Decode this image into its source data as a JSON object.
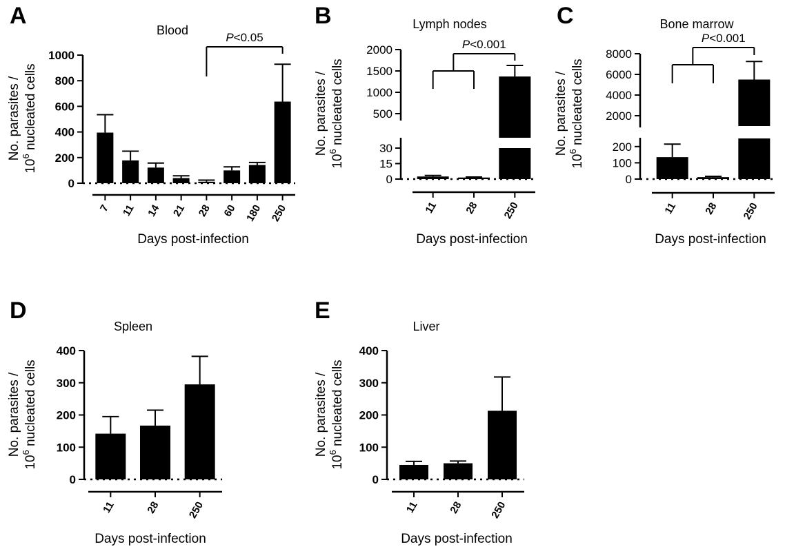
{
  "chart_data": [
    {
      "panel_letter": "A",
      "type": "bar",
      "title": "Blood",
      "ylabel_line1": "No. parasites /",
      "ylabel_line2_base": "10",
      "ylabel_line2_exp": "6",
      "ylabel_line2_rest": " nucleated cells",
      "xlabel": "Days post-infection",
      "categories": [
        "7",
        "11",
        "14",
        "21",
        "28",
        "60",
        "180",
        "250"
      ],
      "values": [
        395,
        178,
        122,
        40,
        12,
        100,
        142,
        637
      ],
      "errors": [
        140,
        72,
        35,
        18,
        12,
        28,
        20,
        292
      ],
      "ylim": [
        0,
        1000
      ],
      "yticks": [
        "0",
        "200",
        "400",
        "600",
        "800",
        "1000"
      ],
      "significance": [
        {
          "label_italic": "P",
          "label_rest": "<0.05"
        }
      ]
    },
    {
      "panel_letter": "B",
      "type": "bar",
      "title": "Lymph nodes",
      "ylabel_line1": "No. parasites /",
      "ylabel_line2_base": "10",
      "ylabel_line2_exp": "6",
      "ylabel_line2_rest": " nucleated cells",
      "xlabel": "Days post-infection",
      "categories": [
        "11",
        "28",
        "250"
      ],
      "values": [
        2.5,
        1.5,
        1370
      ],
      "errors": [
        1,
        0.5,
        260
      ],
      "y_axis_break": {
        "lower_range": [
          0,
          30
        ],
        "upper_range": [
          0,
          2000
        ]
      },
      "yticks_lower": [
        "0",
        "15",
        "30"
      ],
      "yticks_upper": [
        "500",
        "1000",
        "1500",
        "2000"
      ],
      "significance": [
        {
          "label_italic": "P",
          "label_rest": "<0.001"
        }
      ]
    },
    {
      "panel_letter": "C",
      "type": "bar",
      "title": "Bone marrow",
      "ylabel_line1": "No. parasites /",
      "ylabel_line2_base": "10",
      "ylabel_line2_exp": "6",
      "ylabel_line2_rest": " nucleated cells",
      "xlabel": "Days post-infection",
      "categories": [
        "11",
        "28",
        "250"
      ],
      "values": [
        135,
        12,
        5500
      ],
      "errors": [
        80,
        5,
        1750
      ],
      "y_axis_break": {
        "lower_range": [
          0,
          250
        ],
        "upper_range": [
          0,
          8000
        ]
      },
      "yticks_lower": [
        "0",
        "100",
        "200"
      ],
      "yticks_upper": [
        "2000",
        "4000",
        "6000",
        "8000"
      ],
      "significance": [
        {
          "label_italic": "P",
          "label_rest": "<0.001"
        }
      ]
    },
    {
      "panel_letter": "D",
      "type": "bar",
      "title": "Spleen",
      "ylabel_line1": "No. parasites /",
      "ylabel_line2_base": "10",
      "ylabel_line2_exp": "6",
      "ylabel_line2_rest": " nucleated cells",
      "xlabel": "Days post-infection",
      "categories": [
        "11",
        "28",
        "250"
      ],
      "values": [
        142,
        167,
        295
      ],
      "errors": [
        53,
        48,
        87
      ],
      "ylim": [
        0,
        400
      ],
      "yticks": [
        "0",
        "100",
        "200",
        "300",
        "400"
      ]
    },
    {
      "panel_letter": "E",
      "type": "bar",
      "title": "Liver",
      "ylabel_line1": "No. parasites /",
      "ylabel_line2_base": "10",
      "ylabel_line2_exp": "6",
      "ylabel_line2_rest": " nucleated cells",
      "xlabel": "Days post-infection",
      "categories": [
        "11",
        "28",
        "250"
      ],
      "values": [
        45,
        50,
        213
      ],
      "errors": [
        11,
        7,
        105
      ],
      "ylim": [
        0,
        400
      ],
      "yticks": [
        "0",
        "100",
        "200",
        "300",
        "400"
      ]
    }
  ]
}
